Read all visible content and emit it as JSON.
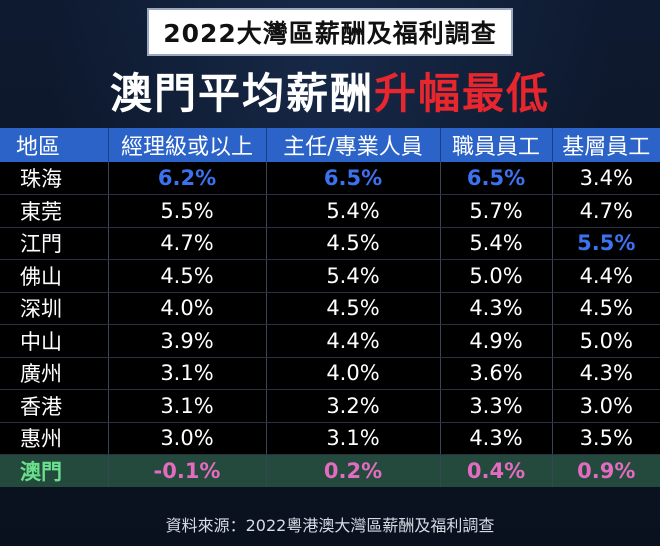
{
  "subtitle": "2022大灣區薪酬及福利調查",
  "headline": {
    "part1": "澳門平均薪酬",
    "part2": "升幅最低"
  },
  "colors": {
    "header_bg": "#2b63c8",
    "highlight_blue": "#3c72f0",
    "macau_row_bg": "#234a3c",
    "macau_value": "#e36cc0",
    "macau_label": "#6be08c",
    "headline_red": "#e8262d"
  },
  "table": {
    "headers": [
      "地區",
      "經理級或以上",
      "主任/專業人員",
      "職員員工",
      "基層員工"
    ],
    "rows": [
      {
        "region": "珠海",
        "values": [
          "6.2%",
          "6.5%",
          "6.5%",
          "3.4%"
        ],
        "highlight": [
          true,
          true,
          true,
          false
        ]
      },
      {
        "region": "東莞",
        "values": [
          "5.5%",
          "5.4%",
          "5.7%",
          "4.7%"
        ],
        "highlight": [
          false,
          false,
          false,
          false
        ]
      },
      {
        "region": "江門",
        "values": [
          "4.7%",
          "4.5%",
          "5.4%",
          "5.5%"
        ],
        "highlight": [
          false,
          false,
          false,
          true
        ]
      },
      {
        "region": "佛山",
        "values": [
          "4.5%",
          "5.4%",
          "5.0%",
          "4.4%"
        ],
        "highlight": [
          false,
          false,
          false,
          false
        ]
      },
      {
        "region": "深圳",
        "values": [
          "4.0%",
          "4.5%",
          "4.3%",
          "4.5%"
        ],
        "highlight": [
          false,
          false,
          false,
          false
        ]
      },
      {
        "region": "中山",
        "values": [
          "3.9%",
          "4.4%",
          "4.9%",
          "5.0%"
        ],
        "highlight": [
          false,
          false,
          false,
          false
        ]
      },
      {
        "region": "廣州",
        "values": [
          "3.1%",
          "4.0%",
          "3.6%",
          "4.3%"
        ],
        "highlight": [
          false,
          false,
          false,
          false
        ]
      },
      {
        "region": "香港",
        "values": [
          "3.1%",
          "3.2%",
          "3.3%",
          "3.0%"
        ],
        "highlight": [
          false,
          false,
          false,
          false
        ]
      },
      {
        "region": "惠州",
        "values": [
          "3.0%",
          "3.1%",
          "4.3%",
          "3.5%"
        ],
        "highlight": [
          false,
          false,
          false,
          false
        ]
      }
    ],
    "macau": {
      "region": "澳門",
      "values": [
        "-0.1%",
        "0.2%",
        "0.4%",
        "0.9%"
      ]
    }
  },
  "source": "資料來源：2022粵港澳大灣區薪酬及福利調查"
}
